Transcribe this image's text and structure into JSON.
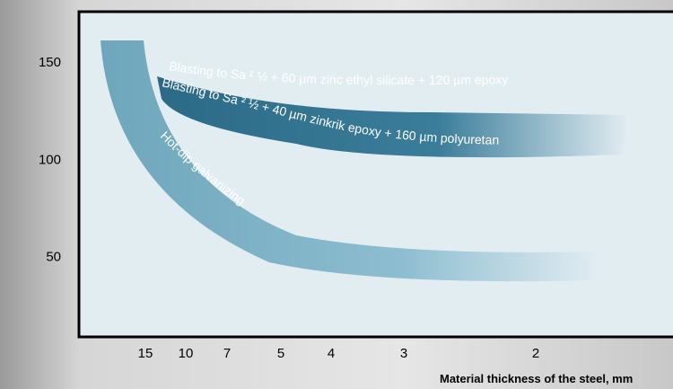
{
  "chart_data": {
    "type": "band",
    "ylim": [
      8.5,
      176
    ],
    "yticks": [
      50,
      100,
      150
    ],
    "categories": [
      "15",
      "10",
      "7",
      "5",
      "4",
      "3",
      "2"
    ],
    "xlabel": "Material thickness of the steel, mm",
    "annotations": [
      "Blasting to Sa ² ½ + 60 µm zinc ethyl silicate  + 120 µm epoxy",
      "Blasting to Sa ² ½ + 40 µm zinkrik epoxy + 160 µm polyuretan",
      "Hot-dip galvanizing"
    ]
  }
}
